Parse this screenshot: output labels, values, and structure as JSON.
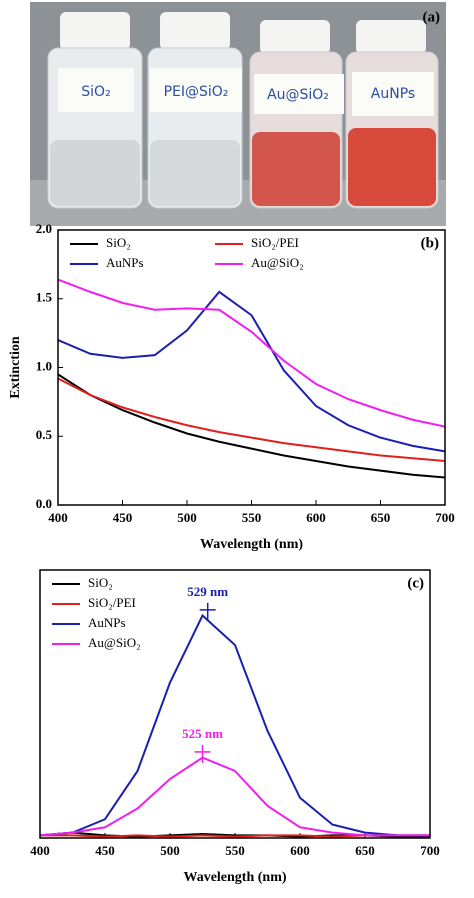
{
  "photo": {
    "label": "(a)",
    "bottle_labels": [
      "SiO₂",
      "PEI@SiO₂",
      "Au@SiO₂",
      "AuNPs"
    ]
  },
  "chart_data": [
    {
      "type": "line",
      "panel": "(b)",
      "xlabel": "Wavelength (nm)",
      "ylabel": "Extinction",
      "xlim": [
        400,
        700
      ],
      "xticks": [
        400,
        450,
        500,
        550,
        600,
        650,
        700
      ],
      "ylim": [
        0,
        2
      ],
      "yticks": [
        {
          "value": 0,
          "label": "0.0"
        },
        0.5,
        {
          "value": 1,
          "label": "1.0"
        },
        1.5,
        {
          "value": 2,
          "label": "2.0"
        }
      ],
      "legend": "upper left",
      "legend_columns": 2,
      "x": [
        400,
        425,
        450,
        475,
        500,
        525,
        550,
        575,
        600,
        625,
        650,
        675,
        700
      ],
      "series": [
        {
          "name": "SiO₂",
          "color": "#000000",
          "values": [
            0.95,
            0.8,
            0.69,
            0.6,
            0.52,
            0.46,
            0.41,
            0.36,
            0.32,
            0.28,
            0.25,
            0.22,
            0.2
          ]
        },
        {
          "name": "SiO₂/PEI",
          "color": "#e0201b",
          "values": [
            0.92,
            0.8,
            0.71,
            0.64,
            0.58,
            0.53,
            0.49,
            0.45,
            0.42,
            0.39,
            0.36,
            0.34,
            0.32
          ]
        },
        {
          "name": "AuNPs",
          "color": "#1b1fb0",
          "values": [
            1.2,
            1.1,
            1.07,
            1.09,
            1.27,
            1.55,
            1.38,
            0.98,
            0.72,
            0.58,
            0.49,
            0.43,
            0.39
          ]
        },
        {
          "name": "Au@SiO₂",
          "color": "#f01ef0",
          "values": [
            1.64,
            1.55,
            1.47,
            1.42,
            1.43,
            1.42,
            1.26,
            1.05,
            0.88,
            0.77,
            0.69,
            0.62,
            0.57
          ]
        }
      ]
    },
    {
      "type": "line",
      "panel": "(c)",
      "xlabel": "Wavelength (nm)",
      "xlim": [
        400,
        700
      ],
      "xticks": [
        400,
        450,
        500,
        550,
        600,
        650,
        700
      ],
      "ylim": [
        0,
        1
      ],
      "legend": "upper left",
      "legend_columns": 1,
      "x": [
        400,
        425,
        450,
        475,
        500,
        525,
        550,
        575,
        600,
        625,
        650,
        675,
        700
      ],
      "series": [
        {
          "name": "SiO₂",
          "color": "#000000",
          "values": [
            0.01,
            0.02,
            0.01,
            0.005,
            0.01,
            0.015,
            0.01,
            0.01,
            0.005,
            0.01,
            0.01,
            0.005,
            0.005
          ]
        },
        {
          "name": "SiO₂/PEI",
          "color": "#e0201b",
          "values": [
            0.01,
            0.01,
            0.005,
            0.01,
            0.005,
            0.01,
            0.005,
            0.01,
            0.01,
            0.005,
            0.01,
            0.01,
            0.01
          ]
        },
        {
          "name": "AuNPs",
          "color": "#1b1fb0",
          "values": [
            0.01,
            0.02,
            0.07,
            0.25,
            0.58,
            0.83,
            0.72,
            0.4,
            0.15,
            0.05,
            0.02,
            0.01,
            0.01
          ]
        },
        {
          "name": "Au@SiO₂",
          "color": "#f01ef0",
          "values": [
            0.01,
            0.02,
            0.04,
            0.11,
            0.22,
            0.3,
            0.25,
            0.12,
            0.04,
            0.02,
            0.01,
            0.01,
            0.01
          ]
        }
      ],
      "annotations": [
        {
          "text": "529 nm",
          "x": 529,
          "y": 0.84,
          "color": "#1b1fb0"
        },
        {
          "text": "525 nm",
          "x": 525,
          "y": 0.31,
          "color": "#f01ef0"
        }
      ]
    }
  ]
}
